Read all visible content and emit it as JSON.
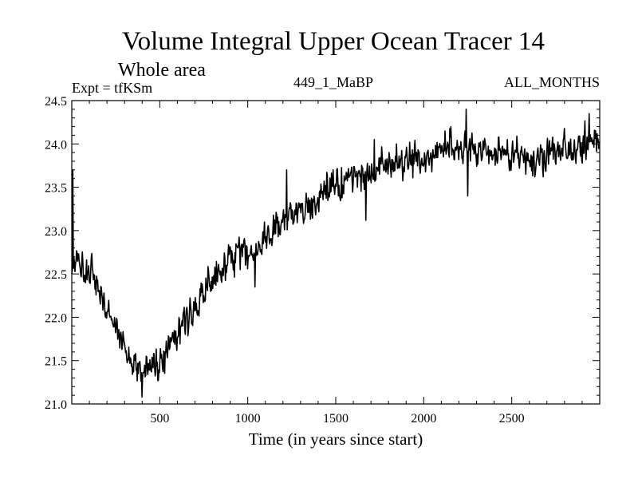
{
  "chart_data": {
    "type": "line",
    "title": "Volume Integral Upper Ocean Tracer 14",
    "subtitle": "Whole area",
    "expt_label": "Expt = tfKSm",
    "run_label": "449_1_MaBP",
    "months_label": "ALL_MONTHS",
    "xlabel": "Time (in years since start)",
    "ylabel": "",
    "xlim": [
      0,
      3000
    ],
    "ylim": [
      21.0,
      24.5
    ],
    "x_ticks": [
      500,
      1000,
      1500,
      2000,
      2500
    ],
    "x_tick_labels": [
      "500",
      "1000",
      "1500",
      "2000",
      "2500"
    ],
    "y_ticks": [
      21.0,
      21.5,
      22.0,
      22.5,
      23.0,
      23.5,
      24.0,
      24.5
    ],
    "y_tick_labels": [
      "21.0",
      "21.5",
      "22.0",
      "22.5",
      "23.0",
      "23.5",
      "24.0",
      "24.5"
    ],
    "series": [
      {
        "name": "tracer14",
        "trend_x": [
          0,
          30,
          80,
          150,
          250,
          330,
          400,
          450,
          500,
          580,
          650,
          750,
          850,
          950,
          1000,
          1050,
          1150,
          1250,
          1350,
          1450,
          1550,
          1650,
          1750,
          1850,
          1950,
          2050,
          2150,
          2250,
          2350,
          2450,
          2550,
          2650,
          2750,
          2850,
          2950,
          3000
        ],
        "trend_y": [
          22.6,
          22.65,
          22.5,
          22.35,
          21.85,
          21.5,
          21.35,
          21.45,
          21.45,
          21.85,
          21.95,
          22.25,
          22.55,
          22.75,
          22.75,
          22.8,
          23.0,
          23.2,
          23.3,
          23.45,
          23.55,
          23.65,
          23.7,
          23.75,
          23.8,
          23.85,
          23.95,
          23.95,
          23.9,
          23.9,
          23.85,
          23.85,
          23.9,
          23.95,
          24.05,
          24.0
        ],
        "noise": 0.09,
        "spikes": [
          {
            "x": 6,
            "y": 23.7
          },
          {
            "x": 400,
            "y": 21.08
          },
          {
            "x": 1040,
            "y": 22.35
          },
          {
            "x": 1220,
            "y": 23.7
          },
          {
            "x": 1670,
            "y": 23.12
          },
          {
            "x": 1720,
            "y": 24.05
          },
          {
            "x": 2120,
            "y": 24.15
          },
          {
            "x": 2240,
            "y": 24.4
          },
          {
            "x": 2250,
            "y": 23.4
          },
          {
            "x": 2940,
            "y": 24.35
          }
        ]
      }
    ]
  }
}
